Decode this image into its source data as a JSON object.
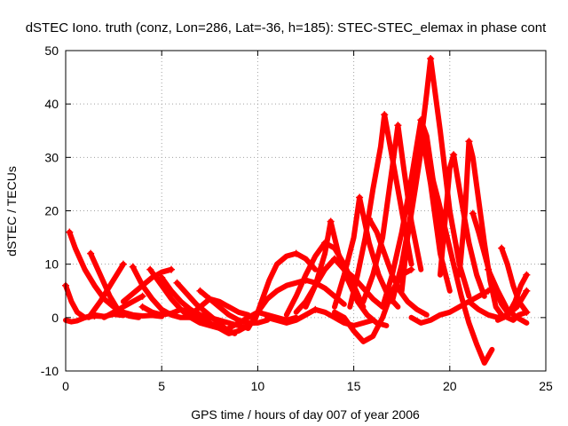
{
  "chart_data": {
    "type": "scatter",
    "title": "dSTEC Iono. truth (conz, Lon=286, Lat=-36, h=185): STEC-STEC_elemax in phase cont",
    "xlabel": "GPS time / hours of day 007 of year 2006",
    "ylabel": "dSTEC  / TECUs",
    "xlim": [
      0,
      25
    ],
    "ylim": [
      -10,
      50
    ],
    "xticks": [
      0,
      5,
      10,
      15,
      20,
      25
    ],
    "yticks": [
      -10,
      0,
      10,
      20,
      30,
      40,
      50
    ],
    "grid": true,
    "marker": "plus",
    "color": "#ff0000",
    "series": [
      {
        "x": [
          0.0,
          0.3,
          0.6,
          1.0,
          1.5,
          2.0,
          2.5,
          3.0
        ],
        "y": [
          6.0,
          3.0,
          1.0,
          0.0,
          0.5,
          0.2,
          0.6,
          0.4
        ]
      },
      {
        "x": [
          0.0,
          0.3,
          0.6,
          1.0,
          1.5,
          2.0
        ],
        "y": [
          -0.5,
          -0.8,
          -0.6,
          0.0,
          0.3,
          0.2
        ]
      },
      {
        "x": [
          0.2,
          0.5,
          1.0,
          1.5,
          2.0,
          2.5,
          3.0,
          3.5,
          4.0,
          4.5,
          5.0
        ],
        "y": [
          16.0,
          13.0,
          9.0,
          6.0,
          3.5,
          2.0,
          1.0,
          0.5,
          0.3,
          0.4,
          0.2
        ]
      },
      {
        "x": [
          1.3,
          1.8,
          2.3,
          2.8,
          3.3,
          3.8
        ],
        "y": [
          12.0,
          8.0,
          4.0,
          1.0,
          0.3,
          0.0
        ]
      },
      {
        "x": [
          1.2,
          1.8,
          2.4,
          3.0
        ],
        "y": [
          0.0,
          3.0,
          6.5,
          10.0
        ]
      },
      {
        "x": [
          3.5,
          4.0,
          4.5,
          5.0,
          5.5,
          6.0,
          6.5
        ],
        "y": [
          9.5,
          6.0,
          3.5,
          1.5,
          0.5,
          0.0,
          0.0
        ]
      },
      {
        "x": [
          2.0,
          2.5,
          3.0,
          3.5,
          4.0
        ],
        "y": [
          0.0,
          1.0,
          2.0,
          3.0,
          4.0
        ]
      },
      {
        "x": [
          4.4,
          5.0,
          5.5,
          6.0,
          6.5,
          7.0,
          7.5,
          8.0
        ],
        "y": [
          9.0,
          6.0,
          3.5,
          1.5,
          0.0,
          -1.0,
          -1.5,
          -2.0
        ]
      },
      {
        "x": [
          3.0,
          3.5,
          4.0,
          4.5,
          5.0,
          5.5
        ],
        "y": [
          3.0,
          4.5,
          6.0,
          7.5,
          8.5,
          9.0
        ]
      },
      {
        "x": [
          5.0,
          5.5,
          6.0,
          6.5,
          7.0,
          7.5,
          8.0,
          8.5,
          9.0,
          9.5
        ],
        "y": [
          7.5,
          5.0,
          3.0,
          1.5,
          0.5,
          0.0,
          -0.5,
          -1.0,
          -1.5,
          -2.0
        ]
      },
      {
        "x": [
          5.8,
          6.3,
          6.8,
          7.3,
          7.8,
          8.3,
          8.8
        ],
        "y": [
          6.5,
          4.5,
          2.5,
          1.0,
          -0.5,
          -2.0,
          -3.0
        ]
      },
      {
        "x": [
          4.0,
          4.5,
          5.0,
          5.5,
          6.0,
          6.5,
          7.0,
          7.5,
          8.0,
          8.5,
          9.0,
          9.5
        ],
        "y": [
          2.0,
          1.0,
          0.5,
          0.8,
          1.5,
          1.0,
          0.0,
          -1.0,
          -2.0,
          -3.0,
          -2.5,
          -1.5
        ]
      },
      {
        "x": [
          6.5,
          7.0,
          7.5,
          8.0,
          8.5,
          9.0,
          9.5
        ],
        "y": [
          0.5,
          2.0,
          3.5,
          3.0,
          2.0,
          1.0,
          0.5
        ]
      },
      {
        "x": [
          7.0,
          7.5,
          8.0,
          8.5,
          9.0,
          9.5,
          10.0,
          10.5
        ],
        "y": [
          5.0,
          3.5,
          2.0,
          0.5,
          -0.5,
          -1.0,
          -1.0,
          -0.5
        ]
      },
      {
        "x": [
          8.5,
          9.0,
          9.5,
          10.0,
          10.5,
          11.0,
          11.5,
          12.0
        ],
        "y": [
          -2.0,
          -1.0,
          0.0,
          1.0,
          0.5,
          0.0,
          -0.5,
          0.0
        ]
      },
      {
        "x": [
          9.5,
          10.0,
          10.5,
          11.0,
          11.5,
          12.0,
          12.5,
          13.0,
          13.5,
          14.0,
          14.5
        ],
        "y": [
          -2.0,
          1.0,
          3.5,
          5.0,
          6.0,
          6.5,
          7.0,
          6.5,
          5.5,
          4.0,
          2.5
        ]
      },
      {
        "x": [
          9.8,
          10.2,
          10.6,
          11.0,
          11.5,
          12.0,
          12.5,
          13.0
        ],
        "y": [
          -1.0,
          3.0,
          7.0,
          10.0,
          11.5,
          12.0,
          11.0,
          9.0
        ]
      },
      {
        "x": [
          10.5,
          11.0,
          11.5,
          12.0,
          12.5,
          13.0,
          13.5,
          14.0,
          14.5,
          15.0,
          15.5,
          16.0
        ],
        "y": [
          0.0,
          -0.5,
          -1.0,
          -0.5,
          0.5,
          1.5,
          1.0,
          0.0,
          -1.0,
          -1.5,
          -1.0,
          -0.5
        ]
      },
      {
        "x": [
          11.5,
          12.0,
          12.5,
          13.0,
          13.5,
          14.0,
          14.5,
          15.0,
          15.5
        ],
        "y": [
          0.5,
          4.0,
          8.0,
          11.5,
          14.0,
          13.0,
          10.0,
          6.0,
          2.0
        ]
      },
      {
        "x": [
          12.0,
          12.5,
          13.0,
          13.5,
          14.0,
          14.5,
          15.0,
          15.5,
          16.0,
          16.5
        ],
        "y": [
          1.0,
          3.0,
          6.0,
          9.0,
          11.0,
          9.0,
          7.5,
          5.5,
          3.5,
          2.0
        ]
      },
      {
        "x": [
          12.5,
          13.0,
          13.5,
          13.8,
          14.2,
          14.7,
          15.2,
          15.7,
          16.2,
          16.7
        ],
        "y": [
          2.0,
          6.0,
          12.0,
          18.0,
          12.0,
          7.0,
          3.0,
          0.5,
          -1.0,
          -1.5
        ]
      },
      {
        "x": [
          14.0,
          14.5,
          15.0,
          15.3,
          15.8,
          16.3,
          16.8,
          17.3
        ],
        "y": [
          2.0,
          8.0,
          15.0,
          22.5,
          14.0,
          8.0,
          4.0,
          2.0
        ]
      },
      {
        "x": [
          14.0,
          14.5,
          15.0,
          15.5,
          16.0,
          16.5,
          17.0,
          17.5,
          18.0
        ],
        "y": [
          1.0,
          0.0,
          -2.5,
          -4.5,
          -3.5,
          0.0,
          5.0,
          8.0,
          9.0
        ]
      },
      {
        "x": [
          14.8,
          15.2,
          15.6,
          16.0,
          16.4,
          16.6,
          17.0,
          17.5,
          18.0
        ],
        "y": [
          2.0,
          8.0,
          15.0,
          24.0,
          32.0,
          38.0,
          30.0,
          20.0,
          10.0
        ]
      },
      {
        "x": [
          15.5,
          16.0,
          16.5,
          17.0,
          17.3,
          17.6,
          18.0,
          18.5
        ],
        "y": [
          3.0,
          8.0,
          15.0,
          28.0,
          36.0,
          28.0,
          18.0,
          9.0
        ]
      },
      {
        "x": [
          15.8,
          16.2,
          16.6,
          17.0,
          17.4,
          17.8,
          18.3,
          18.8
        ],
        "y": [
          18.5,
          16.0,
          12.0,
          8.0,
          5.0,
          3.0,
          1.5,
          0.5
        ]
      },
      {
        "x": [
          16.5,
          17.0,
          17.5,
          18.0,
          18.5,
          18.8,
          19.2,
          19.6
        ],
        "y": [
          2.0,
          8.0,
          16.0,
          26.0,
          37.0,
          34.0,
          24.0,
          15.0
        ]
      },
      {
        "x": [
          17.0,
          17.5,
          18.0,
          18.5,
          18.8,
          19.0,
          19.5,
          20.0,
          20.5,
          21.0
        ],
        "y": [
          3.0,
          10.0,
          20.0,
          33.0,
          42.0,
          48.5,
          35.0,
          20.0,
          10.0,
          4.0
        ]
      },
      {
        "x": [
          17.5,
          17.8,
          18.2,
          18.6,
          19.0,
          19.5,
          20.0
        ],
        "y": [
          5.0,
          15.0,
          24.0,
          33.5,
          25.0,
          12.0,
          5.0
        ]
      },
      {
        "x": [
          18.0,
          18.5,
          19.0,
          19.5,
          20.0,
          20.5,
          21.0,
          21.5,
          22.0
        ],
        "y": [
          0.0,
          -1.0,
          -0.5,
          0.5,
          1.0,
          2.0,
          3.0,
          4.0,
          5.0
        ]
      },
      {
        "x": [
          19.0,
          19.4,
          19.8,
          20.2,
          20.6,
          21.0,
          21.4,
          21.8,
          22.2
        ],
        "y": [
          27.5,
          22.0,
          16.0,
          10.0,
          4.0,
          -1.0,
          -5.0,
          -8.5,
          -6.0
        ]
      },
      {
        "x": [
          19.5,
          19.8,
          20.0,
          20.2,
          20.6,
          21.0,
          21.4,
          21.8
        ],
        "y": [
          8.0,
          20.0,
          28.0,
          30.5,
          22.0,
          14.0,
          8.0,
          4.0
        ]
      },
      {
        "x": [
          20.5,
          20.8,
          21.0,
          21.2,
          21.5,
          21.8,
          22.1,
          22.4,
          22.8
        ],
        "y": [
          8.0,
          20.0,
          33.0,
          30.0,
          22.0,
          14.0,
          7.0,
          2.0,
          0.0
        ]
      },
      {
        "x": [
          21.2,
          21.5,
          21.8,
          22.1,
          22.4,
          22.7,
          23.0
        ],
        "y": [
          19.5,
          16.0,
          12.0,
          8.0,
          5.0,
          2.5,
          1.0
        ]
      },
      {
        "x": [
          21.0,
          21.5,
          22.0,
          22.5,
          23.0,
          23.5,
          24.0
        ],
        "y": [
          3.0,
          1.5,
          0.5,
          0.0,
          0.5,
          2.0,
          5.0
        ]
      },
      {
        "x": [
          22.0,
          22.5,
          23.0,
          23.5,
          24.0
        ],
        "y": [
          9.0,
          5.0,
          1.5,
          0.0,
          -1.0
        ]
      },
      {
        "x": [
          22.7,
          23.0,
          23.3,
          23.6,
          24.0
        ],
        "y": [
          13.0,
          10.0,
          6.0,
          3.0,
          1.0
        ]
      },
      {
        "x": [
          22.5,
          22.8,
          23.1,
          23.4,
          23.7,
          24.0
        ],
        "y": [
          -0.5,
          0.0,
          1.0,
          3.0,
          6.0,
          8.0
        ]
      },
      {
        "x": [
          23.0,
          23.3,
          23.6,
          24.0
        ],
        "y": [
          0.0,
          -0.5,
          0.5,
          1.0
        ]
      }
    ]
  }
}
